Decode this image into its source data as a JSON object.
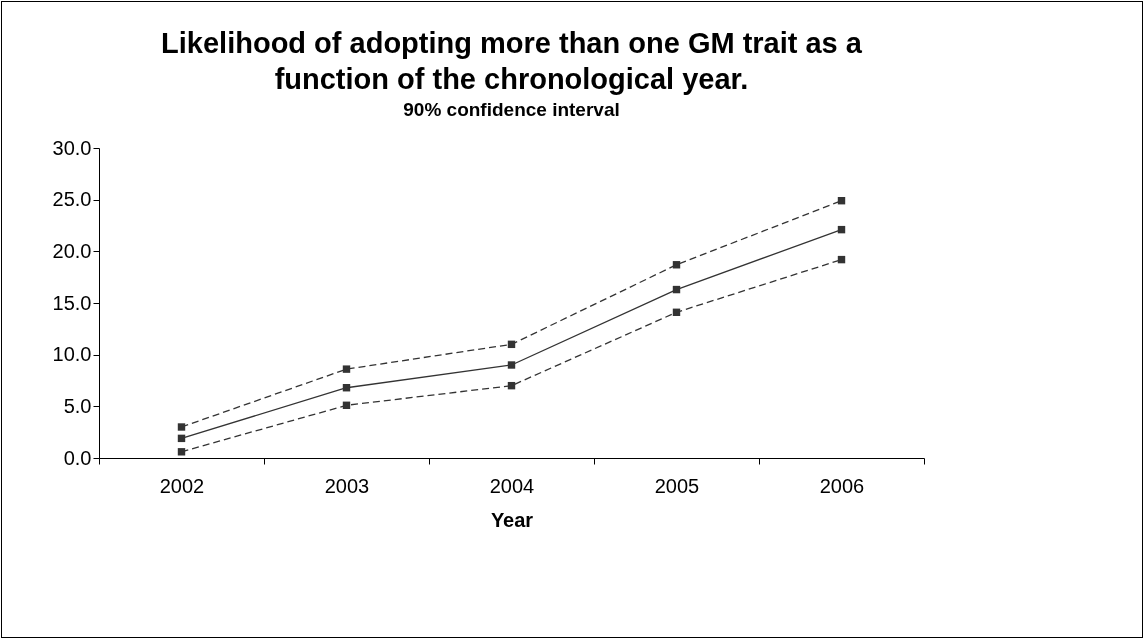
{
  "chart_data": {
    "type": "line",
    "title": "Likelihood of adopting more than one GM trait as a function of the chronological year.",
    "subtitle": "90% confidence interval",
    "xlabel": "Year",
    "categories": [
      "2002",
      "2003",
      "2004",
      "2005",
      "2006"
    ],
    "series": [
      {
        "color": "#333333",
        "line_style": "dashed",
        "values": [
          3.0,
          8.6,
          11.0,
          18.7,
          24.9
        ]
      },
      {
        "color": "#333333",
        "line_style": "solid",
        "values": [
          1.9,
          6.8,
          9.0,
          16.3,
          22.1
        ]
      },
      {
        "color": "#333333",
        "line_style": "dashed",
        "values": [
          0.6,
          5.1,
          7.0,
          14.1,
          19.2
        ]
      }
    ],
    "ylim": [
      0,
      30
    ],
    "yticks": [
      {
        "value": 0,
        "label": "0.0"
      },
      {
        "value": 5,
        "label": "5.0"
      },
      {
        "value": 10,
        "label": "10.0"
      },
      {
        "value": 15,
        "label": "15.0"
      },
      {
        "value": 20,
        "label": "20.0"
      },
      {
        "value": 25,
        "label": "25.0"
      },
      {
        "value": 30,
        "label": "30.0"
      }
    ],
    "grid": false,
    "marker": "square"
  }
}
